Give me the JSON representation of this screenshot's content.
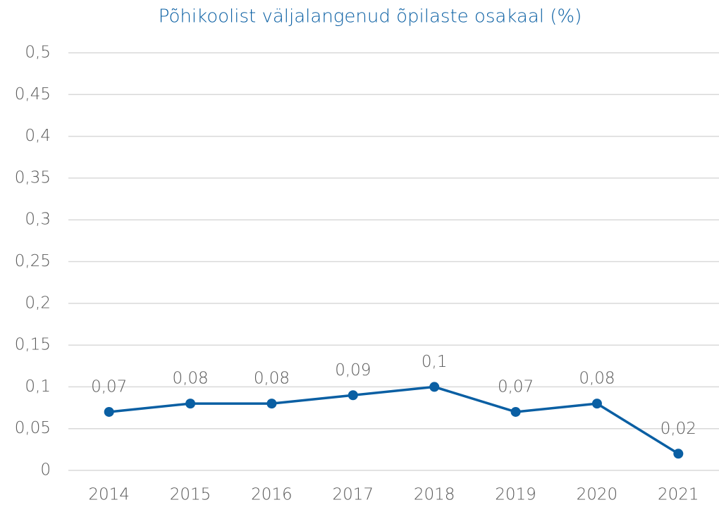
{
  "chart_data": {
    "type": "line",
    "title": "Põhikoolist väljalangenud õpilaste osakaal (%)",
    "categories": [
      "2014",
      "2015",
      "2016",
      "2017",
      "2018",
      "2019",
      "2020",
      "2021"
    ],
    "values": [
      0.07,
      0.08,
      0.08,
      0.09,
      0.1,
      0.07,
      0.08,
      0.02
    ],
    "value_labels": [
      "0,07",
      "0,08",
      "0,08",
      "0,09",
      "0,1",
      "0,07",
      "0,08",
      "0,02"
    ],
    "color": "#0a5fa3",
    "ylim": [
      0,
      0.5
    ],
    "yticks": [
      0,
      {
        "value": 0.05,
        "label": "0,05"
      },
      {
        "value": 0.1,
        "label": "0,1"
      },
      {
        "value": 0.15,
        "label": "0,15"
      },
      {
        "value": 0.2,
        "label": "0,2"
      },
      {
        "value": 0.25,
        "label": "0,25"
      },
      {
        "value": 0.3,
        "label": "0,3"
      },
      {
        "value": 0.35,
        "label": "0,35"
      },
      {
        "value": 0.4,
        "label": "0,4"
      },
      {
        "value": 0.45,
        "label": "0,45"
      },
      {
        "value": 0.5,
        "label": "0,5"
      }
    ],
    "grid": true
  }
}
